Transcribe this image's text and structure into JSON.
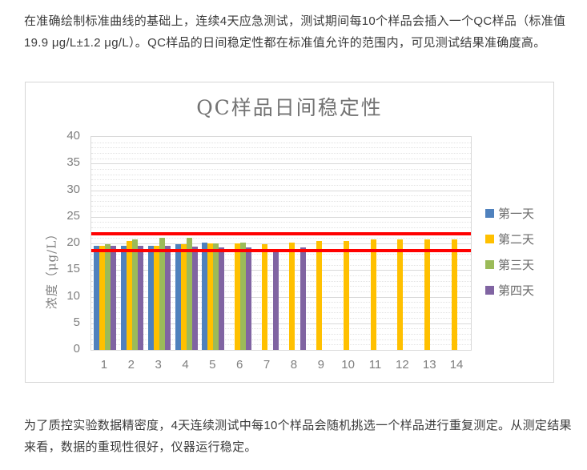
{
  "document": {
    "paragraph_top": "在准确绘制标准曲线的基础上，连续4天应急测试，测试期间每10个样品会插入一个QC样品（标准值19.9 μg/L±1.2 μg/L）。QC样品的日间稳定性都在标准值允许的范围内，可见测试结果准确度高。",
    "paragraph_bottom": "为了质控实验数据精密度，4天连续测试中每10个样品会随机挑选一个样品进行重复测定。从测定结果来看，数据的重现性很好，仪器运行稳定。",
    "text_color": "#3b3b3b"
  },
  "chart_data": {
    "type": "bar",
    "title": "QC样品日间稳定性",
    "ylabel": "浓度（μg/L）",
    "xlabel": "",
    "categories": [
      "1",
      "2",
      "3",
      "4",
      "5",
      "6",
      "7",
      "8",
      "9",
      "10",
      "11",
      "12",
      "13",
      "14"
    ],
    "series": [
      {
        "name": "第一天",
        "color": "#4F81BD",
        "values": [
          19.6,
          19.6,
          19.6,
          19.8,
          20.1,
          null,
          null,
          null,
          null,
          null,
          null,
          null,
          null,
          null
        ]
      },
      {
        "name": "第二天",
        "color": "#FFC000",
        "values": [
          19.6,
          20.4,
          19.6,
          19.9,
          20.0,
          20.0,
          19.9,
          20.2,
          20.5,
          20.4,
          20.7,
          20.7,
          20.8,
          20.7
        ]
      },
      {
        "name": "第三天",
        "color": "#9BBB59",
        "values": [
          19.9,
          20.7,
          21.1,
          21.1,
          20.0,
          20.2,
          null,
          null,
          null,
          null,
          null,
          null,
          null,
          null
        ]
      },
      {
        "name": "第四天",
        "color": "#8064A2",
        "values": [
          19.6,
          19.5,
          19.5,
          19.4,
          19.2,
          19.2,
          19.0,
          19.2,
          null,
          null,
          null,
          null,
          null,
          null
        ]
      }
    ],
    "reference_lines": [
      {
        "value": 21.8,
        "color": "#FF0000"
      },
      {
        "value": 18.6,
        "color": "#FF0000"
      }
    ],
    "ylim": [
      0,
      40
    ],
    "y_major_step": 5,
    "y_minor_step": 1,
    "grid": "major-solid-minor-dotted",
    "legend_position": "right",
    "title_color": "#737373",
    "axis_text_color": "#7f7f7f"
  }
}
